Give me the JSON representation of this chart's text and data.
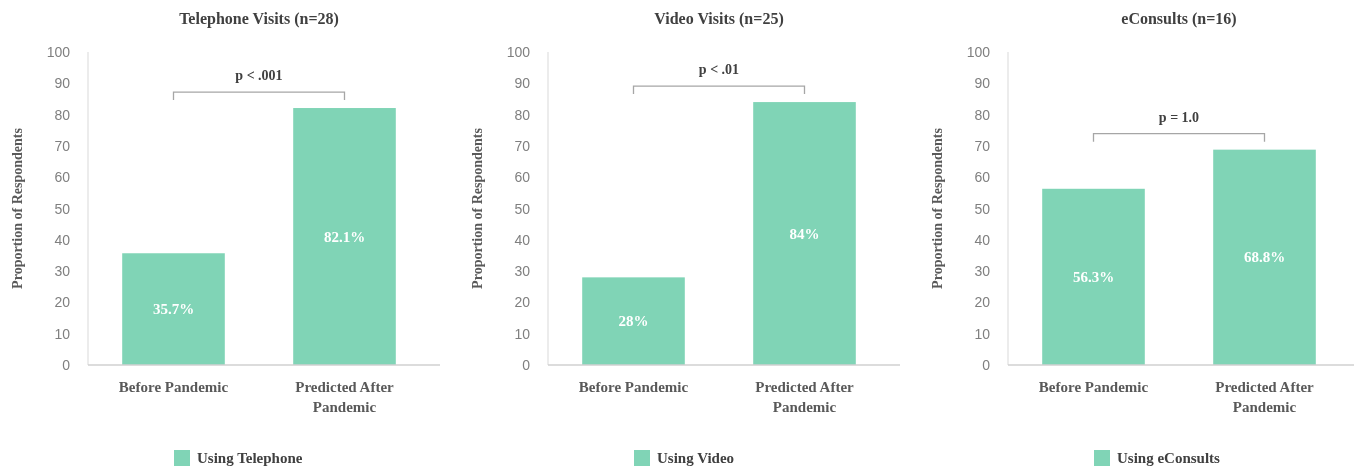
{
  "chart_data": [
    {
      "type": "bar",
      "title": "Telephone Visits (n=28)",
      "ylabel": "Proportion of Respondents",
      "categories": [
        "Before Pandemic",
        "Predicted After Pandemic"
      ],
      "series": [
        {
          "name": "Using Telephone",
          "color": "#80d4b6",
          "values": [
            35.7,
            82.1
          ],
          "value_labels": [
            "35.7%",
            "82.1%"
          ]
        }
      ],
      "ylim": [
        0,
        100
      ],
      "yticks": [
        0,
        10,
        20,
        30,
        40,
        50,
        60,
        70,
        80,
        90,
        100
      ],
      "legend": "bottom",
      "annotations": [
        "p < .001"
      ]
    },
    {
      "type": "bar",
      "title": "Video Visits (n=25)",
      "ylabel": "Proportion of Respondents",
      "categories": [
        "Before Pandemic",
        "Predicted After Pandemic"
      ],
      "series": [
        {
          "name": "Using Video",
          "color": "#80d4b6",
          "values": [
            28,
            84
          ],
          "value_labels": [
            "28%",
            "84%"
          ]
        }
      ],
      "ylim": [
        0,
        100
      ],
      "yticks": [
        0,
        10,
        20,
        30,
        40,
        50,
        60,
        70,
        80,
        90,
        100
      ],
      "legend": "bottom",
      "annotations": [
        "p < .01"
      ]
    },
    {
      "type": "bar",
      "title": "eConsults (n=16)",
      "ylabel": "Proportion of Respondents",
      "categories": [
        "Before Pandemic",
        "Predicted After Pandemic"
      ],
      "series": [
        {
          "name": "Using eConsults",
          "color": "#80d4b6",
          "values": [
            56.3,
            68.8
          ],
          "value_labels": [
            "56.3%",
            "68.8%"
          ]
        }
      ],
      "ylim": [
        0,
        100
      ],
      "yticks": [
        0,
        10,
        20,
        30,
        40,
        50,
        60,
        70,
        80,
        90,
        100
      ],
      "legend": "bottom",
      "annotations": [
        "p = 1.0"
      ]
    }
  ]
}
